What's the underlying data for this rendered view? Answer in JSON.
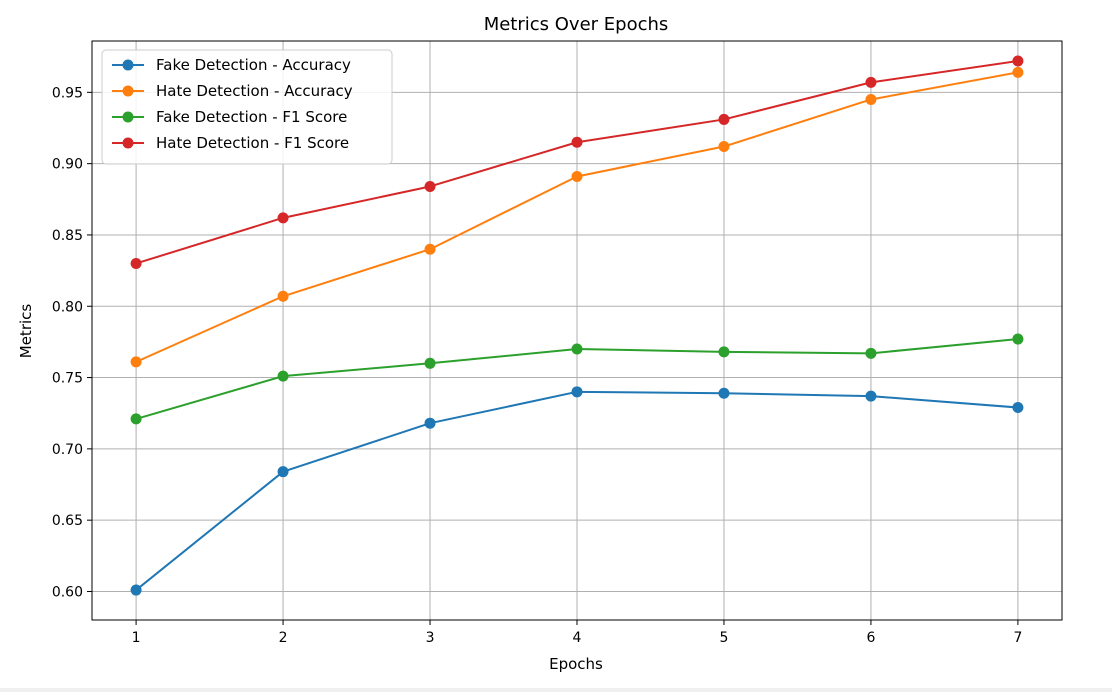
{
  "chart_data": {
    "type": "line",
    "title": "Metrics Over Epochs",
    "xlabel": "Epochs",
    "ylabel": "Metrics",
    "x": [
      1,
      2,
      3,
      4,
      5,
      6,
      7
    ],
    "xlim": [
      0.7,
      7.3
    ],
    "ylim": [
      0.58,
      0.986
    ],
    "xticks": [
      "1",
      "2",
      "3",
      "4",
      "5",
      "6",
      "7"
    ],
    "yticks": [
      "0.60",
      "0.65",
      "0.70",
      "0.75",
      "0.80",
      "0.85",
      "0.90",
      "0.95"
    ],
    "grid": true,
    "legend_position": "top-left",
    "series": [
      {
        "name": "Fake Detection - Accuracy",
        "color": "#1f77b4",
        "values": [
          0.601,
          0.684,
          0.718,
          0.74,
          0.739,
          0.737,
          0.729
        ]
      },
      {
        "name": "Hate Detection - Accuracy",
        "color": "#ff7f0e",
        "values": [
          0.761,
          0.807,
          0.84,
          0.891,
          0.912,
          0.945,
          0.964
        ]
      },
      {
        "name": "Fake Detection - F1 Score",
        "color": "#2ca02c",
        "values": [
          0.721,
          0.751,
          0.76,
          0.77,
          0.768,
          0.767,
          0.777
        ]
      },
      {
        "name": "Hate Detection - F1 Score",
        "color": "#d62728",
        "values": [
          0.83,
          0.862,
          0.884,
          0.915,
          0.931,
          0.957,
          0.972
        ]
      }
    ]
  }
}
